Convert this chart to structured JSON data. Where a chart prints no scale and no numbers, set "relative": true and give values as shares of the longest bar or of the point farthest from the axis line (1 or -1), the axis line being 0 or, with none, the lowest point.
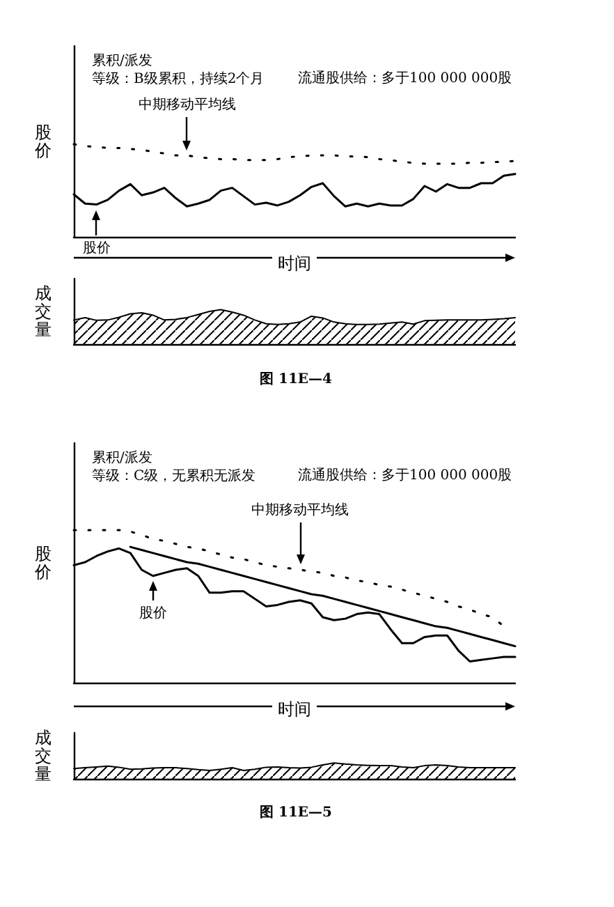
{
  "chart_data": [
    {
      "type": "line",
      "title": "累积/派发",
      "subtitle": "等级：B级累积，持续2个月",
      "ylabel": "股价",
      "xlabel": "时间",
      "relative": true,
      "annotations": [
        "流通股供给：多于100 000 000股"
      ],
      "categories": [
        null,
        null,
        null,
        null,
        null,
        null,
        null,
        null,
        null,
        null,
        null,
        null,
        null,
        null,
        null,
        null,
        null,
        null,
        null,
        null,
        null,
        null,
        null,
        null,
        null,
        null,
        null,
        null,
        null,
        null,
        null,
        null,
        null,
        null,
        null,
        null,
        null,
        null,
        null,
        null
      ],
      "series": [
        {
          "name": "股价",
          "color": "#000000",
          "line_style": "solid",
          "values": [
            0.46,
            0.36,
            0.35,
            0.4,
            0.5,
            0.57,
            0.45,
            0.48,
            0.53,
            0.42,
            0.33,
            0.36,
            0.4,
            0.5,
            0.53,
            0.44,
            0.35,
            0.37,
            0.34,
            0.38,
            0.45,
            0.54,
            0.58,
            0.44,
            0.33,
            0.36,
            0.33,
            0.36,
            0.34,
            0.34,
            0.41,
            0.55,
            0.49,
            0.57,
            0.53,
            0.53,
            0.58,
            0.58,
            0.66,
            0.68
          ]
        },
        {
          "name": "中期移动平均线",
          "color": "#000000",
          "line_style": "dotted",
          "values": [
            1,
            0.98,
            0.97,
            0.96,
            0.96,
            0.95,
            0.94,
            0.92,
            0.9,
            0.88,
            0.88,
            0.86,
            0.85,
            0.84,
            0.84,
            0.83,
            0.83,
            0.83,
            0.84,
            0.86,
            0.87,
            0.88,
            0.88,
            0.88,
            0.87,
            0.87,
            0.86,
            0.84,
            0.83,
            0.81,
            0.8,
            0.79,
            0.79,
            0.79,
            0.79,
            0.8,
            0.8,
            0.81,
            0.81,
            0.82
          ]
        }
      ]
    },
    {
      "type": "area",
      "ylabel": "成交量",
      "relative": true,
      "annotations": [
        "图 11E—4"
      ],
      "categories": [
        null,
        null,
        null,
        null,
        null,
        null,
        null,
        null,
        null,
        null,
        null,
        null,
        null,
        null,
        null,
        null,
        null,
        null,
        null,
        null,
        null,
        null,
        null,
        null,
        null,
        null,
        null,
        null,
        null,
        null,
        null,
        null,
        null,
        null,
        null,
        null,
        null,
        null,
        null,
        null
      ],
      "series": [
        {
          "color": "#000000",
          "values": [
            0.7,
            0.77,
            0.69,
            0.7,
            0.78,
            0.88,
            0.91,
            0.84,
            0.7,
            0.72,
            0.77,
            0.86,
            0.95,
            1,
            0.93,
            0.84,
            0.7,
            0.59,
            0.57,
            0.59,
            0.64,
            0.81,
            0.76,
            0.64,
            0.59,
            0.57,
            0.57,
            0.58,
            0.61,
            0.64,
            0.58,
            0.68,
            0.69,
            0.7,
            0.7,
            0.7,
            0.7,
            0.72,
            0.74,
            0.77
          ]
        }
      ]
    },
    {
      "type": "line",
      "title": "累积/派发",
      "subtitle": "等级：C级，无累积无派发",
      "ylabel": "股价",
      "xlabel": "时间",
      "relative": true,
      "annotations": [
        "流通股供给：多于100 000 000股"
      ],
      "categories": [
        null,
        null,
        null,
        null,
        null,
        null,
        null,
        null,
        null,
        null,
        null,
        null,
        null,
        null,
        null,
        null,
        null,
        null,
        null,
        null,
        null,
        null,
        null,
        null,
        null,
        null,
        null,
        null,
        null,
        null,
        null,
        null,
        null,
        null,
        null,
        null,
        null,
        null,
        null,
        null
      ],
      "series": [
        {
          "name": "股价",
          "color": "#000000",
          "line_style": "solid",
          "values": [
            0.77,
            0.79,
            0.83,
            0.86,
            0.88,
            0.85,
            0.74,
            0.7,
            0.72,
            0.74,
            0.75,
            0.7,
            0.59,
            0.59,
            0.6,
            0.6,
            0.55,
            0.5,
            0.51,
            0.53,
            0.54,
            0.52,
            0.43,
            0.41,
            0.42,
            0.45,
            0.46,
            0.45,
            0.35,
            0.26,
            0.26,
            0.3,
            0.31,
            0.31,
            0.21,
            0.14,
            0.15,
            0.16,
            0.17,
            0.17
          ]
        },
        {
          "name": "中期移动平均线",
          "color": "#000000",
          "line_style": "dotted",
          "values": [
            1,
            1,
            1,
            1,
            1,
            0.99,
            0.97,
            0.94,
            0.93,
            0.91,
            0.89,
            0.88,
            0.86,
            0.84,
            0.82,
            0.81,
            0.79,
            0.77,
            0.76,
            0.75,
            0.74,
            0.73,
            0.72,
            0.7,
            0.69,
            0.67,
            0.66,
            0.64,
            0.63,
            0.61,
            0.59,
            0.57,
            0.55,
            0.53,
            0.5,
            0.48,
            0.45,
            0.43,
            0.37,
            null
          ]
        },
        {
          "color": "#000000",
          "line_style": "solid",
          "values": [
            null,
            null,
            null,
            null,
            null,
            0.89,
            0.87,
            0.85,
            0.83,
            0.81,
            0.79,
            0.78,
            0.76,
            0.74,
            0.72,
            0.7,
            0.68,
            0.66,
            0.64,
            0.62,
            0.6,
            0.58,
            0.57,
            0.55,
            0.53,
            0.51,
            0.49,
            0.47,
            0.45,
            0.43,
            0.41,
            0.39,
            0.37,
            0.36,
            0.34,
            0.32,
            0.3,
            0.28,
            0.26,
            0.24
          ]
        }
      ]
    },
    {
      "type": "area",
      "ylabel": "成交量",
      "relative": true,
      "annotations": [
        "图 11E—5"
      ],
      "categories": [
        null,
        null,
        null,
        null,
        null,
        null,
        null,
        null,
        null,
        null,
        null,
        null,
        null,
        null,
        null,
        null,
        null,
        null,
        null,
        null,
        null,
        null,
        null,
        null,
        null,
        null,
        null,
        null,
        null,
        null,
        null,
        null,
        null,
        null,
        null,
        null,
        null,
        null,
        null,
        null
      ],
      "series": [
        {
          "color": "#000000",
          "values": [
            0.65,
            0.7,
            0.75,
            0.8,
            0.73,
            0.6,
            0.63,
            0.68,
            0.7,
            0.7,
            0.65,
            0.58,
            0.53,
            0.6,
            0.7,
            0.53,
            0.6,
            0.73,
            0.75,
            0.7,
            0.68,
            0.73,
            0.88,
            1,
            0.93,
            0.88,
            0.85,
            0.83,
            0.83,
            0.75,
            0.7,
            0.83,
            0.88,
            0.83,
            0.75,
            0.7,
            0.7,
            0.7,
            0.7,
            0.7
          ]
        }
      ]
    }
  ]
}
